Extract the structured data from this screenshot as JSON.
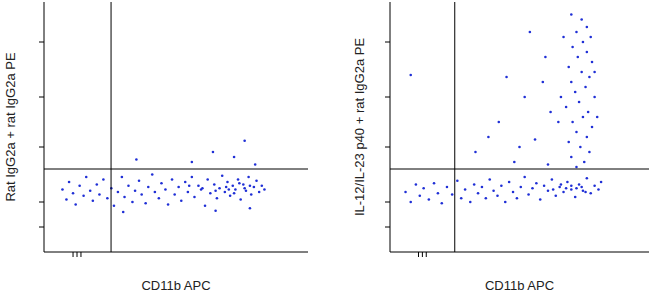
{
  "chart_data": [
    {
      "type": "scatter",
      "x_label": "CD11b APC",
      "y_label": "Rat IgG2a + rat IgG2a PE",
      "xlim": [
        0,
        1000
      ],
      "ylim": [
        0,
        1000
      ],
      "xticks": [
        110,
        125,
        140
      ],
      "yticks": [
        100,
        200,
        420,
        620,
        840
      ],
      "tick_labels": false,
      "color": "#1f2fd6",
      "gates": {
        "x": 254,
        "y": 332
      },
      "x": [
        70,
        85,
        95,
        110,
        120,
        135,
        150,
        160,
        175,
        185,
        200,
        210,
        225,
        240,
        255,
        265,
        280,
        295,
        305,
        320,
        335,
        345,
        360,
        370,
        385,
        395,
        410,
        420,
        435,
        445,
        460,
        470,
        485,
        495,
        510,
        520,
        535,
        545,
        560,
        570,
        585,
        595,
        610,
        620,
        630,
        645,
        655,
        665,
        675,
        685,
        695,
        705,
        715,
        725,
        735,
        745,
        755,
        765,
        775,
        785,
        795,
        805,
        815,
        825,
        835,
        700,
        720,
        740,
        760,
        780,
        690,
        650,
        600,
        550,
        350,
        560,
        720,
        760,
        640,
        800,
        300,
        650,
        780
      ],
      "y": [
        250,
        210,
        280,
        235,
        190,
        265,
        225,
        300,
        245,
        205,
        270,
        230,
        290,
        215,
        255,
        185,
        240,
        300,
        220,
        265,
        200,
        245,
        285,
        230,
        195,
        260,
        310,
        240,
        215,
        275,
        250,
        190,
        290,
        230,
        260,
        205,
        280,
        240,
        300,
        220,
        265,
        250,
        185,
        290,
        235,
        270,
        215,
        255,
        305,
        240,
        280,
        225,
        265,
        250,
        290,
        210,
        270,
        245,
        300,
        230,
        260,
        285,
        240,
        265,
        250,
        250,
        235,
        275,
        255,
        265,
        260,
        245,
        255,
        265,
        370,
        360,
        380,
        445,
        400,
        350,
        160,
        165,
        175
      ]
    },
    {
      "type": "scatter",
      "x_label": "CD11b APC",
      "y_label": "IL-12/IL-23 p40 + rat IgG2a PE",
      "xlim": [
        0,
        1000
      ],
      "ylim": [
        0,
        1000
      ],
      "xticks": [
        110,
        125,
        140
      ],
      "yticks": [
        100,
        200,
        420,
        620,
        840
      ],
      "tick_labels": false,
      "color": "#1f2fd6",
      "gates": {
        "x": 250,
        "y": 332
      },
      "x": [
        60,
        80,
        100,
        115,
        130,
        150,
        170,
        185,
        200,
        220,
        240,
        260,
        275,
        290,
        310,
        325,
        340,
        355,
        370,
        385,
        400,
        415,
        430,
        445,
        460,
        475,
        490,
        505,
        520,
        535,
        550,
        565,
        580,
        595,
        610,
        625,
        640,
        655,
        670,
        685,
        700,
        715,
        730,
        745,
        760,
        775,
        790,
        805,
        815,
        700,
        720,
        740,
        755,
        680,
        660,
        630,
        720,
        750,
        700,
        770,
        735,
        690,
        760,
        720,
        780,
        705,
        745,
        765,
        680,
        730,
        790,
        715,
        755,
        700,
        770,
        740,
        690,
        780,
        725,
        760,
        705,
        745,
        775,
        720,
        760,
        740,
        700,
        660,
        650,
        670,
        800,
        790,
        330,
        420,
        480,
        520,
        560,
        600,
        610,
        540,
        450,
        380,
        620,
        590,
        500,
        80
      ],
      "y": [
        240,
        200,
        270,
        225,
        255,
        210,
        275,
        235,
        195,
        260,
        230,
        285,
        215,
        250,
        200,
        270,
        235,
        260,
        215,
        290,
        245,
        225,
        265,
        200,
        280,
        240,
        215,
        260,
        300,
        230,
        255,
        275,
        210,
        265,
        245,
        290,
        225,
        260,
        240,
        280,
        250,
        220,
        270,
        245,
        295,
        235,
        265,
        250,
        280,
        265,
        255,
        260,
        240,
        255,
        270,
        250,
        340,
        360,
        380,
        400,
        420,
        440,
        460,
        480,
        500,
        520,
        540,
        560,
        580,
        600,
        620,
        640,
        660,
        680,
        700,
        720,
        740,
        760,
        780,
        800,
        820,
        840,
        860,
        880,
        900,
        930,
        950,
        620,
        520,
        860,
        540,
        720,
        400,
        520,
        360,
        620,
        450,
        780,
        350,
        880,
        700,
        460,
        560,
        680,
        420,
        708
      ]
    }
  ]
}
